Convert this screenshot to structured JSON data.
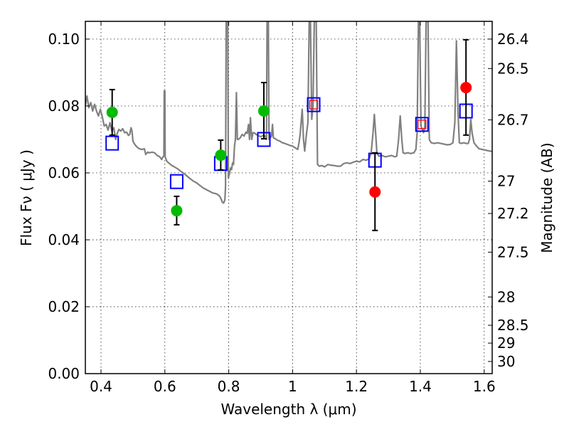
{
  "chart_data": {
    "type": "line",
    "title": "",
    "xlabel": "Wavelength  λ (μm)",
    "ylabel": "Flux  Fν  ( μJy )",
    "ylabel_right": "Magnitude (AB)",
    "xlim": [
      0.351,
      1.625
    ],
    "ylim": [
      0.0,
      0.1053
    ],
    "grid": true,
    "x_ticks": [
      0.4,
      0.6,
      0.8,
      1.0,
      1.2,
      1.4,
      1.6
    ],
    "x_tick_labels": [
      "0.4",
      "0.6",
      "0.8",
      "1",
      "1.2",
      "1.4",
      "1.6"
    ],
    "y_ticks": [
      0.0,
      0.02,
      0.04,
      0.06,
      0.08,
      0.1
    ],
    "y_tick_labels": [
      "0.00",
      "0.02",
      "0.04",
      "0.06",
      "0.08",
      "0.10"
    ],
    "right_axis": {
      "relation": "mag = 23.9 - 2.5*log10(flux_uJy)",
      "ticks": [
        26.4,
        26.5,
        26.7,
        27,
        27.2,
        27.5,
        28,
        28.5,
        29,
        30
      ],
      "tick_labels": [
        "26.4",
        "26.5",
        "26.7",
        "27",
        "27.2",
        "27.5",
        "28",
        "28.5",
        "29",
        "30"
      ]
    },
    "colors": {
      "spectrum": "#808080",
      "model_square": "#0000ff",
      "model_square_inner": "#ff0000",
      "observed_optical": "#00bb00",
      "observed_nir": "#ff0000",
      "errorbar": "#000000",
      "grid": "#000000"
    },
    "series": [
      {
        "name": "model spectrum",
        "type": "line",
        "points": [
          [
            0.351,
            0.08
          ],
          [
            0.356,
            0.083
          ],
          [
            0.362,
            0.0795
          ],
          [
            0.368,
            0.081
          ],
          [
            0.374,
            0.0785
          ],
          [
            0.38,
            0.0805
          ],
          [
            0.386,
            0.0785
          ],
          [
            0.392,
            0.077
          ],
          [
            0.398,
            0.079
          ],
          [
            0.404,
            0.0768
          ],
          [
            0.41,
            0.074
          ],
          [
            0.416,
            0.0745
          ],
          [
            0.422,
            0.0728
          ],
          [
            0.428,
            0.075
          ],
          [
            0.434,
            0.0725
          ],
          [
            0.44,
            0.0735
          ],
          [
            0.446,
            0.07
          ],
          [
            0.45,
            0.0715
          ],
          [
            0.456,
            0.073
          ],
          [
            0.462,
            0.0725
          ],
          [
            0.468,
            0.0732
          ],
          [
            0.474,
            0.072
          ],
          [
            0.48,
            0.0722
          ],
          [
            0.486,
            0.0712
          ],
          [
            0.49,
            0.0715
          ],
          [
            0.494,
            0.0735
          ],
          [
            0.497,
            0.0725
          ],
          [
            0.5,
            0.0695
          ],
          [
            0.506,
            0.0685
          ],
          [
            0.512,
            0.0678
          ],
          [
            0.52,
            0.0672
          ],
          [
            0.528,
            0.067
          ],
          [
            0.536,
            0.0672
          ],
          [
            0.54,
            0.0655
          ],
          [
            0.546,
            0.0662
          ],
          [
            0.552,
            0.066
          ],
          [
            0.56,
            0.0662
          ],
          [
            0.568,
            0.066
          ],
          [
            0.576,
            0.0652
          ],
          [
            0.584,
            0.0648
          ],
          [
            0.59,
            0.064
          ],
          [
            0.594,
            0.0648
          ],
          [
            0.597,
            0.065
          ],
          [
            0.598,
            0.0845
          ],
          [
            0.6,
            0.0845
          ],
          [
            0.601,
            0.0648
          ],
          [
            0.606,
            0.0635
          ],
          [
            0.614,
            0.0628
          ],
          [
            0.622,
            0.0622
          ],
          [
            0.63,
            0.0618
          ],
          [
            0.64,
            0.0612
          ],
          [
            0.65,
            0.0605
          ],
          [
            0.66,
            0.0598
          ],
          [
            0.67,
            0.059
          ],
          [
            0.68,
            0.0582
          ],
          [
            0.69,
            0.0575
          ],
          [
            0.7,
            0.057
          ],
          [
            0.71,
            0.0562
          ],
          [
            0.72,
            0.0555
          ],
          [
            0.73,
            0.055
          ],
          [
            0.74,
            0.0545
          ],
          [
            0.75,
            0.054
          ],
          [
            0.76,
            0.0538
          ],
          [
            0.766,
            0.0535
          ],
          [
            0.772,
            0.053
          ],
          [
            0.777,
            0.052
          ],
          [
            0.78,
            0.0512
          ],
          [
            0.784,
            0.051
          ],
          [
            0.788,
            0.052
          ],
          [
            0.79,
            0.056
          ],
          [
            0.792,
            0.1053
          ],
          [
            0.797,
            0.1053
          ],
          [
            0.799,
            0.0585
          ],
          [
            0.803,
            0.06
          ],
          [
            0.806,
            0.0615
          ],
          [
            0.809,
            0.061
          ],
          [
            0.812,
            0.063
          ],
          [
            0.815,
            0.0625
          ],
          [
            0.818,
            0.068
          ],
          [
            0.821,
            0.07
          ],
          [
            0.824,
            0.084
          ],
          [
            0.827,
            0.07
          ],
          [
            0.83,
            0.07
          ],
          [
            0.836,
            0.0705
          ],
          [
            0.842,
            0.0715
          ],
          [
            0.848,
            0.071
          ],
          [
            0.854,
            0.0722
          ],
          [
            0.858,
            0.0718
          ],
          [
            0.862,
            0.0745
          ],
          [
            0.865,
            0.07
          ],
          [
            0.868,
            0.0765
          ],
          [
            0.872,
            0.07
          ],
          [
            0.876,
            0.072
          ],
          [
            0.88,
            0.072
          ],
          [
            0.886,
            0.0715
          ],
          [
            0.892,
            0.0712
          ],
          [
            0.9,
            0.0708
          ],
          [
            0.908,
            0.0712
          ],
          [
            0.914,
            0.071
          ],
          [
            0.918,
            0.07
          ],
          [
            0.92,
            0.1053
          ],
          [
            0.924,
            0.1053
          ],
          [
            0.926,
            0.07
          ],
          [
            0.93,
            0.0705
          ],
          [
            0.934,
            0.071
          ],
          [
            0.937,
            0.0745
          ],
          [
            0.94,
            0.0705
          ],
          [
            0.946,
            0.0702
          ],
          [
            0.952,
            0.0698
          ],
          [
            0.96,
            0.0695
          ],
          [
            0.968,
            0.069
          ],
          [
            0.976,
            0.0688
          ],
          [
            0.984,
            0.0685
          ],
          [
            0.992,
            0.0682
          ],
          [
            1.0,
            0.068
          ],
          [
            1.008,
            0.0675
          ],
          [
            1.016,
            0.067
          ],
          [
            1.02,
            0.069
          ],
          [
            1.024,
            0.072
          ],
          [
            1.03,
            0.079
          ],
          [
            1.034,
            0.07
          ],
          [
            1.038,
            0.0665
          ],
          [
            1.044,
            0.072
          ],
          [
            1.048,
            0.075
          ],
          [
            1.052,
            0.1053
          ],
          [
            1.056,
            0.1053
          ],
          [
            1.06,
            0.076
          ],
          [
            1.064,
            0.08
          ],
          [
            1.068,
            0.1053
          ],
          [
            1.074,
            0.1053
          ],
          [
            1.078,
            0.0625
          ],
          [
            1.084,
            0.062
          ],
          [
            1.092,
            0.0622
          ],
          [
            1.1,
            0.0618
          ],
          [
            1.11,
            0.0625
          ],
          [
            1.12,
            0.0623
          ],
          [
            1.13,
            0.0622
          ],
          [
            1.14,
            0.062
          ],
          [
            1.15,
            0.062
          ],
          [
            1.16,
            0.0628
          ],
          [
            1.17,
            0.063
          ],
          [
            1.18,
            0.0628
          ],
          [
            1.19,
            0.0632
          ],
          [
            1.2,
            0.0635
          ],
          [
            1.21,
            0.0633
          ],
          [
            1.22,
            0.064
          ],
          [
            1.23,
            0.0638
          ],
          [
            1.24,
            0.0642
          ],
          [
            1.246,
            0.066
          ],
          [
            1.252,
            0.072
          ],
          [
            1.256,
            0.0775
          ],
          [
            1.26,
            0.072
          ],
          [
            1.264,
            0.066
          ],
          [
            1.27,
            0.065
          ],
          [
            1.28,
            0.0652
          ],
          [
            1.29,
            0.0648
          ],
          [
            1.3,
            0.065
          ],
          [
            1.31,
            0.0652
          ],
          [
            1.32,
            0.0648
          ],
          [
            1.326,
            0.065
          ],
          [
            1.332,
            0.07
          ],
          [
            1.337,
            0.077
          ],
          [
            1.342,
            0.07
          ],
          [
            1.346,
            0.066
          ],
          [
            1.352,
            0.0658
          ],
          [
            1.36,
            0.066
          ],
          [
            1.37,
            0.0658
          ],
          [
            1.38,
            0.066
          ],
          [
            1.386,
            0.067
          ],
          [
            1.39,
            0.072
          ],
          [
            1.394,
            0.1053
          ],
          [
            1.398,
            0.1053
          ],
          [
            1.402,
            0.074
          ],
          [
            1.406,
            0.073
          ],
          [
            1.41,
            0.072
          ],
          [
            1.414,
            0.074
          ],
          [
            1.418,
            0.1053
          ],
          [
            1.424,
            0.1053
          ],
          [
            1.428,
            0.07
          ],
          [
            1.434,
            0.069
          ],
          [
            1.444,
            0.0688
          ],
          [
            1.454,
            0.069
          ],
          [
            1.464,
            0.0688
          ],
          [
            1.474,
            0.0686
          ],
          [
            1.484,
            0.0684
          ],
          [
            1.494,
            0.0685
          ],
          [
            1.502,
            0.069
          ],
          [
            1.508,
            0.075
          ],
          [
            1.513,
            0.0995
          ],
          [
            1.518,
            0.078
          ],
          [
            1.522,
            0.069
          ],
          [
            1.528,
            0.0688
          ],
          [
            1.536,
            0.069
          ],
          [
            1.544,
            0.0688
          ],
          [
            1.55,
            0.0688
          ],
          [
            1.554,
            0.07
          ],
          [
            1.558,
            0.076
          ],
          [
            1.562,
            0.072
          ],
          [
            1.568,
            0.069
          ],
          [
            1.576,
            0.068
          ],
          [
            1.584,
            0.0672
          ],
          [
            1.594,
            0.067
          ],
          [
            1.604,
            0.0668
          ],
          [
            1.614,
            0.0666
          ],
          [
            1.625,
            0.0664
          ]
        ]
      },
      {
        "name": "model photometry",
        "type": "scatter",
        "marker": "open-square",
        "x": [
          0.435,
          0.637,
          0.775,
          0.91,
          1.066,
          1.258,
          1.405,
          1.543
        ],
        "y": [
          0.0689,
          0.0574,
          0.0628,
          0.07,
          0.0804,
          0.0638,
          0.0745,
          0.0785
        ],
        "inner_red_square": [
          false,
          false,
          false,
          false,
          true,
          false,
          true,
          false
        ]
      },
      {
        "name": "observed optical",
        "type": "scatter",
        "marker": "filled-circle",
        "color": "#00bb00",
        "x": [
          0.435,
          0.637,
          0.775,
          0.91
        ],
        "y": [
          0.0781,
          0.0487,
          0.0653,
          0.0785
        ],
        "yerr_low": [
          0.0713,
          0.0445,
          0.0609,
          0.0702
        ],
        "yerr_high": [
          0.0849,
          0.053,
          0.0698,
          0.087
        ]
      },
      {
        "name": "observed near-IR",
        "type": "scatter",
        "marker": "filled-circle",
        "color": "#ff0000",
        "x": [
          1.258,
          1.543
        ],
        "y": [
          0.0543,
          0.0855
        ],
        "yerr_low": [
          0.0428,
          0.0713
        ],
        "yerr_high": [
          0.066,
          0.0998
        ]
      }
    ]
  }
}
